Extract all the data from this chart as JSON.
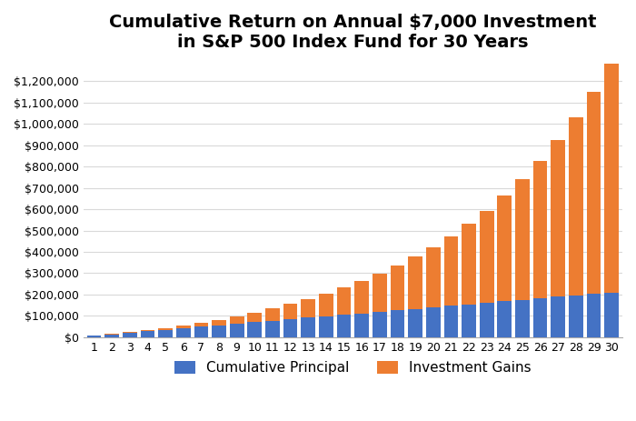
{
  "title": "Cumulative Return on Annual $7,000 Investment\nin S&P 500 Index Fund for 30 Years",
  "years": [
    1,
    2,
    3,
    4,
    5,
    6,
    7,
    8,
    9,
    10,
    11,
    12,
    13,
    14,
    15,
    16,
    17,
    18,
    19,
    20,
    21,
    22,
    23,
    24,
    25,
    26,
    27,
    28,
    29,
    30
  ],
  "principal": [
    7000,
    14000,
    21000,
    28000,
    35000,
    42000,
    49000,
    56000,
    63000,
    70000,
    77000,
    84000,
    91000,
    98000,
    105000,
    112000,
    119000,
    126000,
    133000,
    140000,
    147000,
    154000,
    161000,
    168000,
    175000,
    182000,
    189000,
    196000,
    203000,
    210000
  ],
  "total": [
    7700,
    15470,
    24017,
    33419,
    43861,
    55347,
    68082,
    82190,
    97809,
    115090,
    134199,
    155319,
    178551,
    204106,
    232217,
    263139,
    297253,
    334978,
    376776,
    422954,
    474049,
    530754,
    593630,
    663493,
    741042,
    827047,
    922651,
    1029216,
    1148338,
    1281372
  ],
  "principal_color": "#4472c4",
  "gains_color": "#ed7d31",
  "legend_labels": [
    "Cumulative Principal",
    "Investment Gains"
  ],
  "ylim": [
    0,
    1300000
  ],
  "yticks": [
    0,
    100000,
    200000,
    300000,
    400000,
    500000,
    600000,
    700000,
    800000,
    900000,
    1000000,
    1100000,
    1200000
  ],
  "background_color": "#ffffff",
  "grid_color": "#d9d9d9",
  "title_fontsize": 14,
  "tick_fontsize": 9,
  "legend_fontsize": 11
}
